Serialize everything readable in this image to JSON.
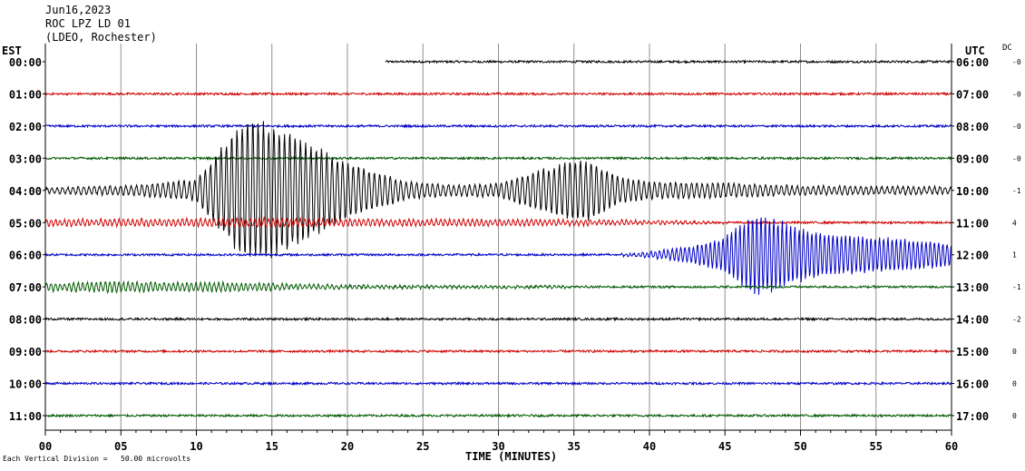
{
  "header": {
    "date": "Jun16,2023",
    "station": "ROC LPZ LD 01",
    "location": "(LDEO, Rochester)"
  },
  "left_tz": "EST",
  "right_tz": "UTC",
  "dc_label": "DC",
  "footer": {
    "scale_note": "Each Vertical Division =   50.00 microvolts"
  },
  "colors": {
    "black": "#000000",
    "red": "#d00000",
    "blue": "#0000c8",
    "green": "#005a00",
    "grid": "#909090"
  },
  "chart_data": {
    "type": "line",
    "title": "Jun16,2023 ROC LPZ LD 01 (LDEO, Rochester)",
    "xlabel": "TIME (MINUTES)",
    "xlim": [
      0,
      60
    ],
    "x_ticks": [
      "00",
      "05",
      "10",
      "15",
      "20",
      "25",
      "30",
      "35",
      "40",
      "45",
      "50",
      "55",
      "60"
    ],
    "grid": true,
    "rows": [
      {
        "est": "00:00",
        "utc": "06:00",
        "dc": "-0",
        "color": "black"
      },
      {
        "est": "01:00",
        "utc": "07:00",
        "dc": "-0",
        "color": "red"
      },
      {
        "est": "02:00",
        "utc": "08:00",
        "dc": "-0",
        "color": "blue"
      },
      {
        "est": "03:00",
        "utc": "09:00",
        "dc": "-0",
        "color": "green"
      },
      {
        "est": "04:00",
        "utc": "10:00",
        "dc": "-1",
        "color": "black"
      },
      {
        "est": "05:00",
        "utc": "11:00",
        "dc": "4",
        "color": "red"
      },
      {
        "est": "06:00",
        "utc": "12:00",
        "dc": "1",
        "color": "blue"
      },
      {
        "est": "07:00",
        "utc": "13:00",
        "dc": "-1",
        "color": "green"
      },
      {
        "est": "08:00",
        "utc": "14:00",
        "dc": "-2",
        "color": "black"
      },
      {
        "est": "09:00",
        "utc": "15:00",
        "dc": "0",
        "color": "red"
      },
      {
        "est": "10:00",
        "utc": "16:00",
        "dc": "0",
        "color": "blue"
      },
      {
        "est": "11:00",
        "utc": "17:00",
        "dc": "0",
        "color": "green"
      }
    ],
    "events": [
      {
        "row": 0,
        "start": 0,
        "end": 22.5,
        "gap": true
      },
      {
        "row": 4,
        "start": 0,
        "end": 60,
        "envelope": [
          [
            0,
            0.3
          ],
          [
            6,
            0.6
          ],
          [
            10,
            1.2
          ],
          [
            12,
            5.5
          ],
          [
            13,
            8
          ],
          [
            15,
            7.5
          ],
          [
            17,
            6
          ],
          [
            19,
            4
          ],
          [
            22,
            2
          ],
          [
            24,
            1
          ],
          [
            27,
            0.6
          ],
          [
            30,
            0.8
          ],
          [
            33,
            2.5
          ],
          [
            35,
            3.5
          ],
          [
            36,
            3.5
          ],
          [
            38,
            1.5
          ],
          [
            40,
            1
          ],
          [
            45,
            0.8
          ],
          [
            50,
            0.5
          ],
          [
            60,
            0.4
          ]
        ],
        "period": 0.35
      },
      {
        "row": 5,
        "start": 0,
        "end": 45,
        "envelope": [
          [
            0,
            0.35
          ],
          [
            8,
            0.4
          ],
          [
            15,
            0.45
          ],
          [
            20,
            0.35
          ],
          [
            30,
            0.35
          ],
          [
            36,
            0.3
          ],
          [
            40,
            0.2
          ],
          [
            44,
            0.1
          ]
        ],
        "period": 0.3
      },
      {
        "row": 6,
        "start": 37,
        "end": 60,
        "envelope": [
          [
            37,
            0
          ],
          [
            40,
            0.3
          ],
          [
            43,
            1
          ],
          [
            45,
            2
          ],
          [
            46,
            3.5
          ],
          [
            47,
            4.5
          ],
          [
            48,
            4.3
          ],
          [
            50,
            3
          ],
          [
            52,
            2.4
          ],
          [
            55,
            2
          ],
          [
            58,
            1.6
          ],
          [
            60,
            1.2
          ]
        ],
        "period": 0.28
      },
      {
        "row": 7,
        "start": 0,
        "end": 36,
        "envelope": [
          [
            0,
            0.4
          ],
          [
            4,
            0.6
          ],
          [
            8,
            0.5
          ],
          [
            12,
            0.5
          ],
          [
            16,
            0.3
          ],
          [
            20,
            0.2
          ],
          [
            24,
            0.15
          ],
          [
            30,
            0.1
          ]
        ],
        "period": 0.3
      }
    ]
  }
}
